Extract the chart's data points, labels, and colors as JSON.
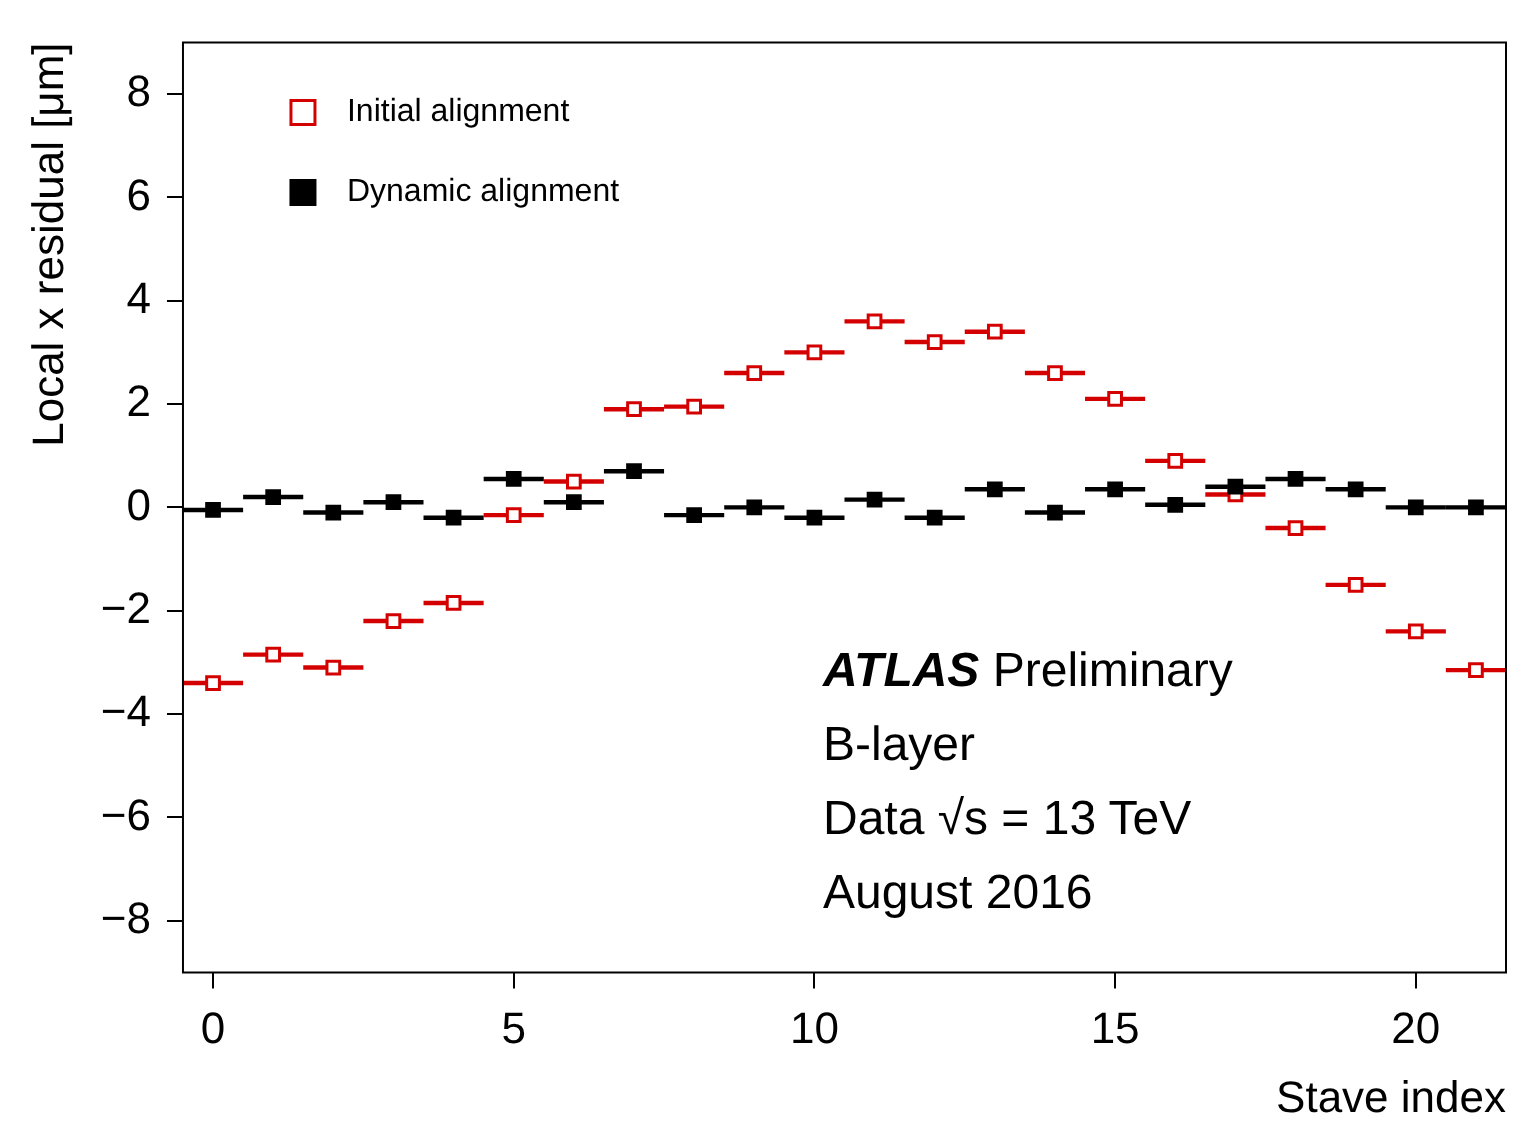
{
  "chart_data": {
    "type": "scatter",
    "xlabel": "Stave index",
    "ylabel": "Local x residual [μm]",
    "x": [
      0,
      1,
      2,
      3,
      4,
      5,
      6,
      7,
      8,
      9,
      10,
      11,
      12,
      13,
      14,
      15,
      16,
      17,
      18,
      19,
      20,
      21
    ],
    "series": [
      {
        "name": "Initial alignment",
        "color": "#d40000",
        "marker": "square",
        "values": [
          -3.4,
          -2.85,
          -3.1,
          -2.2,
          -1.85,
          -0.15,
          0.5,
          1.9,
          1.95,
          2.6,
          3.0,
          3.6,
          3.2,
          3.4,
          2.6,
          2.1,
          0.9,
          0.25,
          -0.4,
          -1.5,
          -2.4,
          -3.15
        ],
        "xerrors": [
          0.5,
          0.5,
          0.5,
          0.5,
          0.5,
          0.5,
          0.5,
          0.5,
          0.5,
          0.5,
          0.5,
          0.5,
          0.5,
          0.5,
          0.5,
          0.5,
          0.5,
          0.5,
          0.5,
          0.5,
          0.5,
          0.5
        ]
      },
      {
        "name": "Dynamic alignment",
        "color": "#000000",
        "marker": "square",
        "values": [
          -0.05,
          0.2,
          -0.1,
          0.1,
          -0.2,
          0.55,
          0.1,
          0.7,
          -0.15,
          0.0,
          -0.2,
          0.15,
          -0.2,
          0.35,
          -0.1,
          0.35,
          0.05,
          0.4,
          0.55,
          0.35,
          0.0,
          0.0
        ],
        "xerrors": [
          0.5,
          0.5,
          0.5,
          0.5,
          0.5,
          0.5,
          0.5,
          0.5,
          0.5,
          0.5,
          0.5,
          0.5,
          0.5,
          0.5,
          0.5,
          0.5,
          0.5,
          0.5,
          0.5,
          0.5,
          0.5,
          0.5
        ]
      }
    ],
    "xlim": [
      -0.5,
      21.5
    ],
    "xticks": [
      0,
      5,
      10,
      15,
      20
    ],
    "ylim": [
      -9,
      9
    ],
    "yticks": [
      -8,
      -6,
      -4,
      -2,
      0,
      2,
      4,
      6,
      8
    ],
    "grid": false,
    "legend": "top left",
    "annotations": [
      "ATLAS Preliminary",
      "B-layer",
      "Data √s = 13 TeV",
      "August 2016"
    ]
  }
}
